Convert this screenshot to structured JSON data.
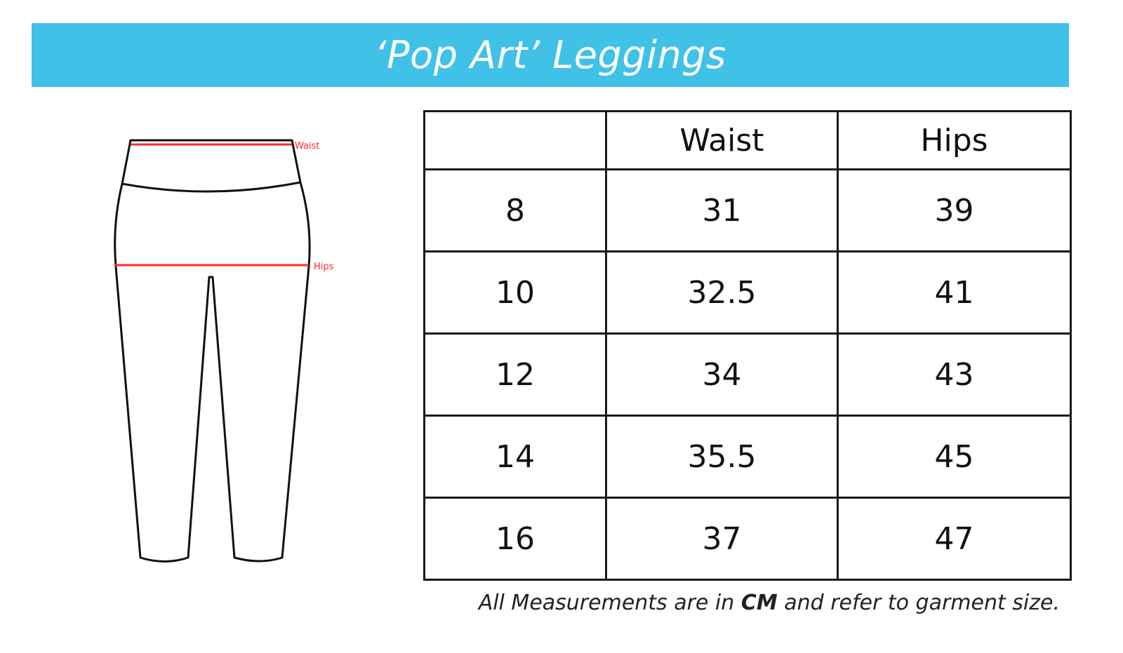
{
  "title": "‘Pop Art’ Leggings",
  "colors": {
    "banner": "#3fc1e8",
    "measure_line": "#ff2a2a"
  },
  "diagram": {
    "waist_label": "Waist",
    "hips_label": "Hips"
  },
  "table": {
    "headers": [
      "",
      "Waist",
      "Hips"
    ],
    "rows": [
      [
        "8",
        "31",
        "39"
      ],
      [
        "10",
        "32.5",
        "41"
      ],
      [
        "12",
        "34",
        "43"
      ],
      [
        "14",
        "35.5",
        "45"
      ],
      [
        "16",
        "37",
        "47"
      ]
    ]
  },
  "note": {
    "before": "All Measurements are in ",
    "unit": "CM",
    "after": " and refer to garment size."
  }
}
